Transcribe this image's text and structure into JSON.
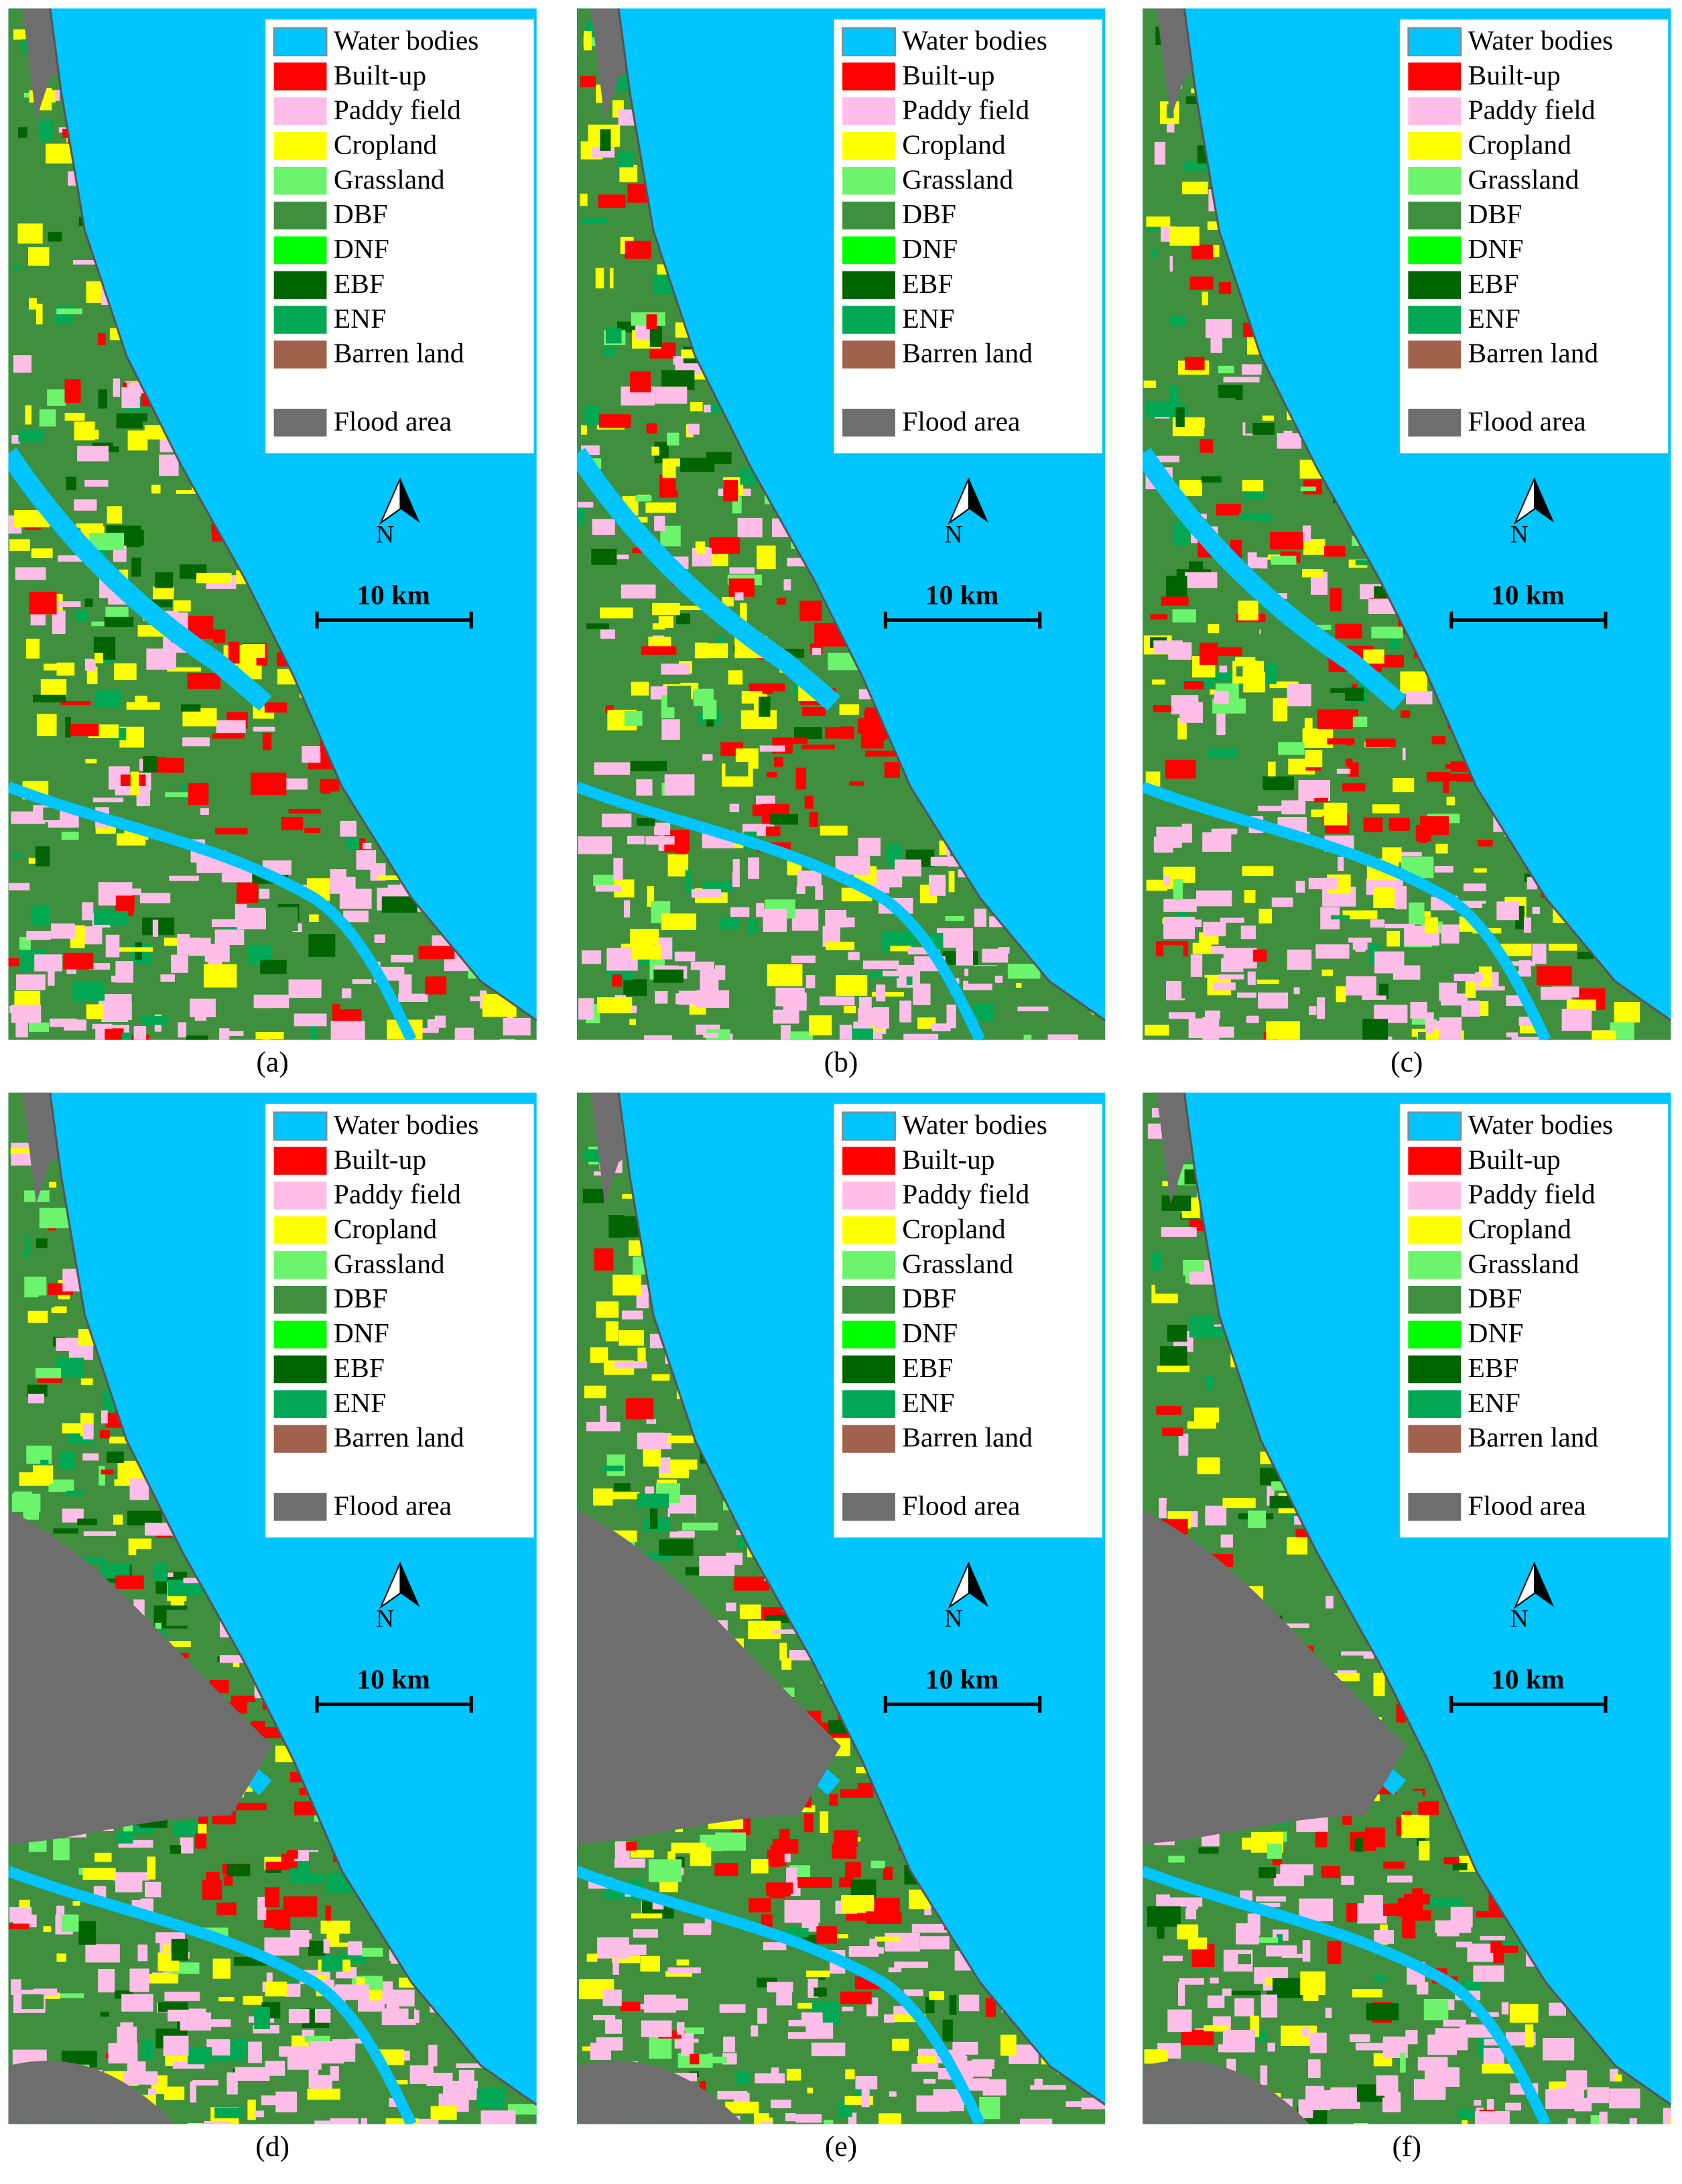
{
  "panels": [
    {
      "caption": "(a)"
    },
    {
      "caption": "(b)"
    },
    {
      "caption": "(c)"
    },
    {
      "caption": "(d)"
    },
    {
      "caption": "(e)"
    },
    {
      "caption": "(f)"
    }
  ],
  "legend": [
    {
      "name": "Water bodies",
      "color": "#00c5ff"
    },
    {
      "name": "Built-up",
      "color": "#ff0000"
    },
    {
      "name": "Paddy field",
      "color": "#ffbee8"
    },
    {
      "name": "Cropland",
      "color": "#ffff00"
    },
    {
      "name": "Grassland",
      "color": "#6cf46c"
    },
    {
      "name": "DBF",
      "color": "#3f8f3f"
    },
    {
      "name": "DNF",
      "color": "#00ff00"
    },
    {
      "name": "EBF",
      "color": "#006400"
    },
    {
      "name": "ENF",
      "color": "#00a854"
    },
    {
      "name": "Barren land",
      "color": "#a0624a"
    },
    {
      "name": "Flood area",
      "color": "#6e6e6e"
    }
  ],
  "north_label": "N",
  "scale_label": "10 km"
}
